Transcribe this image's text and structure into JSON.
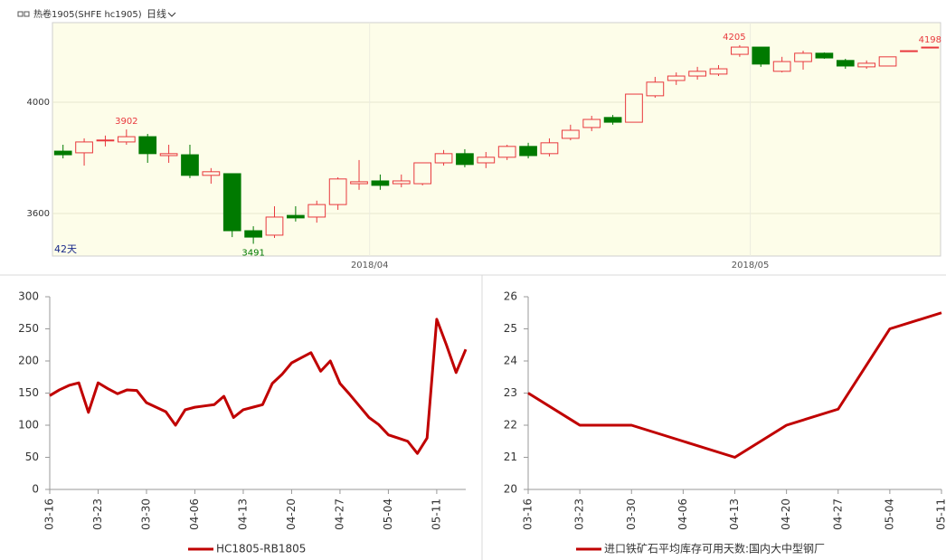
{
  "chart_data": [
    {
      "type": "candlestick",
      "title": "热卷1905(SHFE hc1905)",
      "period": "日线",
      "range_label": "42天",
      "categories": [
        null,
        null,
        null,
        null,
        null,
        null,
        null,
        null,
        null,
        null,
        null,
        null,
        null,
        null,
        null,
        "2018/04",
        null,
        null,
        null,
        null,
        null,
        null,
        null,
        null,
        null,
        null,
        null,
        null,
        null,
        null,
        null,
        null,
        null,
        "2018/05",
        null,
        null,
        null,
        null,
        null,
        null,
        null,
        null
      ],
      "open": [
        3824,
        3818,
        3862,
        3857,
        3876,
        3808,
        3811,
        3737,
        3743,
        3538,
        3522,
        3593,
        3587,
        3632,
        3707,
        3717,
        3707,
        3707,
        3782,
        3815,
        3782,
        3802,
        3841,
        3815,
        3870,
        3909,
        3945,
        3928,
        4023,
        4078,
        4094,
        4101,
        4172,
        4198,
        4111,
        4146,
        4176,
        4150,
        4127,
        4130,
        4185,
        4195
      ],
      "high": [
        3847,
        3870,
        3880,
        3902,
        3886,
        3847,
        3847,
        3763,
        3743,
        3554,
        3626,
        3626,
        3646,
        3730,
        3792,
        3740,
        3740,
        3782,
        3828,
        3831,
        3821,
        3847,
        3854,
        3870,
        3919,
        3951,
        3954,
        4029,
        4091,
        4107,
        4127,
        4133,
        4205,
        4198,
        4163,
        4185,
        4179,
        4156,
        4150,
        4163,
        4185,
        4198
      ],
      "low": [
        3798,
        3772,
        3841,
        3847,
        3782,
        3782,
        3727,
        3707,
        3515,
        3491,
        3512,
        3571,
        3567,
        3613,
        3685,
        3685,
        3694,
        3701,
        3772,
        3766,
        3763,
        3792,
        3798,
        3805,
        3863,
        3896,
        3919,
        3928,
        4016,
        4062,
        4081,
        4094,
        4163,
        4127,
        4107,
        4117,
        4156,
        4120,
        4120,
        4130,
        4185,
        4195
      ],
      "close": [
        3811,
        3857,
        3864,
        3876,
        3815,
        3815,
        3737,
        3750,
        3538,
        3515,
        3587,
        3584,
        3632,
        3724,
        3714,
        3701,
        3717,
        3782,
        3815,
        3776,
        3802,
        3841,
        3808,
        3854,
        3899,
        3938,
        3928,
        4029,
        4072,
        4094,
        4111,
        4120,
        4198,
        4137,
        4146,
        4176,
        4159,
        4130,
        4140,
        4163,
        4185,
        4198
      ],
      "ylim": [
        3447,
        4286
      ],
      "yticks": [
        3600,
        4000
      ],
      "grid": true,
      "up_color": "#e8383d",
      "down_color": "#007a00"
    },
    {
      "type": "line",
      "categories": [
        "03-16",
        null,
        null,
        null,
        null,
        "03-23",
        null,
        null,
        null,
        null,
        "03-30",
        null,
        null,
        null,
        null,
        "04-06",
        null,
        null,
        null,
        null,
        "04-13",
        null,
        null,
        null,
        null,
        "04-20",
        null,
        null,
        null,
        null,
        "04-27",
        null,
        null,
        null,
        null,
        "05-04",
        null,
        null,
        null,
        null,
        "05-11",
        null,
        null,
        null
      ],
      "series": [
        {
          "name": "HC1805-RB1805",
          "color": "#c00000",
          "values": [
            146,
            155,
            162,
            166,
            120,
            166,
            157,
            149,
            155,
            154,
            135,
            128,
            121,
            100,
            124,
            128,
            130,
            132,
            145,
            112,
            124,
            128,
            132,
            165,
            179,
            197,
            205,
            213,
            184,
            200,
            165,
            148,
            130,
            112,
            101,
            85,
            80,
            75,
            56,
            80,
            265,
            225,
            182,
            218
          ]
        }
      ],
      "ylim": [
        0,
        300
      ],
      "yticks": [
        0,
        50,
        100,
        150,
        200,
        250,
        300
      ]
    },
    {
      "type": "line",
      "categories": [
        "03-16",
        "03-23",
        "03-30",
        "04-06",
        "04-13",
        "04-20",
        "04-27",
        "05-04",
        "05-11"
      ],
      "series": [
        {
          "name": "进口铁矿石平均库存可用天数:国内大中型钢厂",
          "color": "#c00000",
          "values": [
            23,
            22,
            22,
            21.5,
            21,
            22,
            22.5,
            25,
            25.5
          ]
        }
      ],
      "ylim": [
        20,
        26
      ],
      "yticks": [
        20,
        21,
        22,
        23,
        24,
        25,
        26
      ]
    }
  ]
}
